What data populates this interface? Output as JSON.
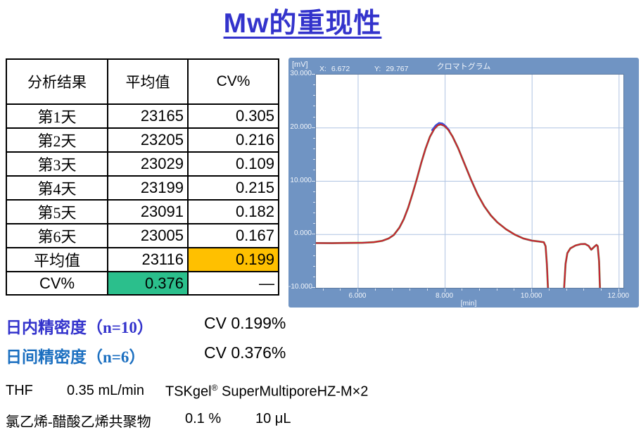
{
  "title": {
    "text": "Mw的重现性",
    "color": "#3333CC"
  },
  "table": {
    "headers": [
      "分析结果",
      "平均值",
      "CV%"
    ],
    "rows": [
      {
        "label": "第1天",
        "mean": "23165",
        "cv": "0.305"
      },
      {
        "label": "第2天",
        "mean": "23205",
        "cv": "0.216"
      },
      {
        "label": "第3天",
        "mean": "23029",
        "cv": "0.109"
      },
      {
        "label": "第4天",
        "mean": "23199",
        "cv": "0.215"
      },
      {
        "label": "第5天",
        "mean": "23091",
        "cv": "0.182"
      },
      {
        "label": "第6天",
        "mean": "23005",
        "cv": "0.167"
      },
      {
        "label": "平均值",
        "mean": "23116",
        "cv": "0.199",
        "cv_bg": "#FFC000"
      },
      {
        "label": "CV%",
        "mean": "0.376",
        "cv": "—",
        "mean_bg": "#2BBF8C"
      }
    ]
  },
  "precision": [
    {
      "label": "日内精密度（n=10）",
      "value": "CV 0.199%",
      "color": "#3333CC"
    },
    {
      "label": "日间精密度（n=6）",
      "value": "CV 0.376%",
      "color": "#1B6FC0"
    }
  ],
  "conditions": {
    "solvent": "THF",
    "flow": "0.35 mL/min",
    "column_name": "TSKgel",
    "column_reg": "®",
    "column_rest": " SuperMultiporeHZ-M×2",
    "sample": "氯乙烯-醋酸乙烯共聚物",
    "concentration": "0.1 %",
    "injection": "10 μL"
  },
  "chart_data": {
    "type": "line",
    "title": "クロマトグラム",
    "y_unit": "[mV]",
    "x_label": "[min]",
    "cursor": {
      "x_label": "X:",
      "x_value": "6.672",
      "y_label": "Y:",
      "y_value": "29.767"
    },
    "xlim": [
      5.03,
      12.1
    ],
    "ylim": [
      -10,
      30
    ],
    "x_ticks": [
      {
        "v": 6,
        "label": "6.000"
      },
      {
        "v": 8,
        "label": "8.000"
      },
      {
        "v": 10,
        "label": "10.000"
      },
      {
        "v": 12,
        "label": "12.000"
      }
    ],
    "y_ticks": [
      {
        "v": 30,
        "label": "30.000"
      },
      {
        "v": 20,
        "label": "20.000"
      },
      {
        "v": 10,
        "label": "10.000"
      },
      {
        "v": 0,
        "label": "0.000"
      },
      {
        "v": -10,
        "label": "-10.000"
      }
    ],
    "x_minor_step": 0.4,
    "y_minor_step": 2,
    "panel_color": "#7094C3",
    "grid_color": "#AFC4E2",
    "tick_color": "#DDE6F3",
    "trace_colors": {
      "red": "#D42222",
      "blue": "#3A50D9",
      "green": "#8FA623"
    },
    "description": "Six overlaid GPC chromatogram traces (day 1-6), essentially superimposed; main polymer peak ~7.9 min at ~20.6 mV, negative system peaks after 10.3 min",
    "points": [
      [
        5.03,
        -1.6
      ],
      [
        5.4,
        -1.62
      ],
      [
        5.8,
        -1.58
      ],
      [
        6.1,
        -1.55
      ],
      [
        6.35,
        -1.45
      ],
      [
        6.55,
        -1.2
      ],
      [
        6.7,
        -0.75
      ],
      [
        6.82,
        -0.1
      ],
      [
        6.95,
        1.3
      ],
      [
        7.05,
        2.9
      ],
      [
        7.15,
        5.0
      ],
      [
        7.25,
        7.6
      ],
      [
        7.35,
        10.4
      ],
      [
        7.45,
        13.4
      ],
      [
        7.55,
        16.1
      ],
      [
        7.65,
        18.3
      ],
      [
        7.75,
        19.8
      ],
      [
        7.83,
        20.5
      ],
      [
        7.9,
        20.65
      ],
      [
        7.98,
        20.4
      ],
      [
        8.07,
        19.7
      ],
      [
        8.17,
        18.4
      ],
      [
        8.3,
        16.2
      ],
      [
        8.45,
        13.2
      ],
      [
        8.6,
        10.2
      ],
      [
        8.75,
        7.5
      ],
      [
        8.9,
        5.3
      ],
      [
        9.05,
        3.6
      ],
      [
        9.2,
        2.3
      ],
      [
        9.4,
        1.0
      ],
      [
        9.6,
        0.0
      ],
      [
        9.8,
        -0.75
      ],
      [
        10.0,
        -1.15
      ],
      [
        10.15,
        -1.3
      ],
      [
        10.27,
        -1.45
      ],
      [
        10.31,
        -2.2
      ],
      [
        10.34,
        -5.5
      ],
      [
        10.37,
        -11
      ],
      null,
      [
        10.73,
        -11
      ],
      [
        10.77,
        -5.5
      ],
      [
        10.81,
        -3.5
      ],
      [
        10.88,
        -2.6
      ],
      [
        11.0,
        -2.05
      ],
      [
        11.12,
        -1.8
      ],
      [
        11.22,
        -1.78
      ],
      [
        11.3,
        -2.15
      ],
      [
        11.36,
        -2.85
      ],
      [
        11.43,
        -2.3
      ],
      [
        11.48,
        -1.95
      ],
      [
        11.51,
        -2.2
      ],
      [
        11.54,
        -5.0
      ],
      [
        11.565,
        -11
      ]
    ],
    "peak_cap_points": [
      [
        7.7,
        19.6
      ],
      [
        7.78,
        20.45
      ],
      [
        7.86,
        20.95
      ],
      [
        7.94,
        20.85
      ],
      [
        8.02,
        20.3
      ],
      [
        8.1,
        19.5
      ]
    ]
  }
}
